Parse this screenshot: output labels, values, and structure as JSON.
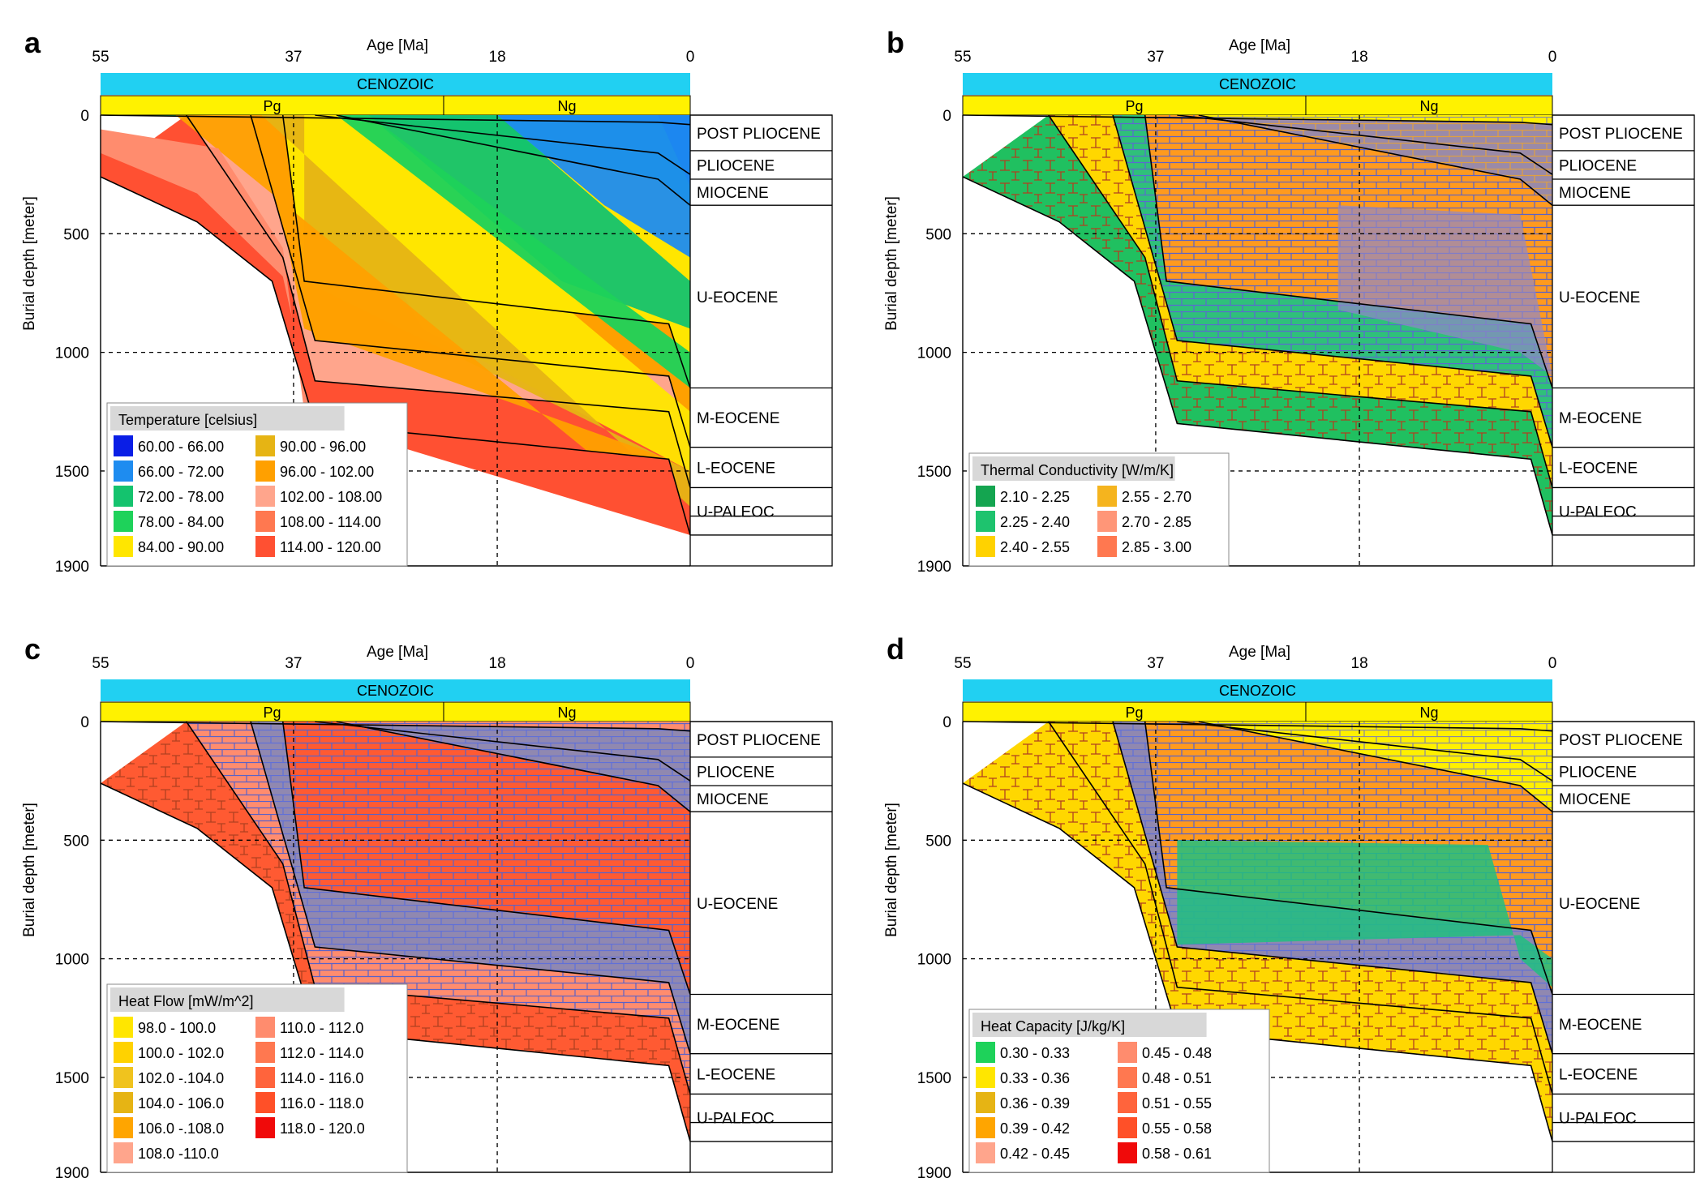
{
  "colors": {
    "cenozoic_bar": "#21d0f2",
    "period_bar": "#fff200",
    "black": "#000000"
  },
  "chart_data": [
    {
      "type": "area",
      "panel_letter": "a",
      "xlabel": "Age [Ma]",
      "ylabel": "Burial depth [meter]",
      "x_ticks": [
        "55",
        "37",
        "18",
        "0"
      ],
      "y_ticks": [
        "0",
        "500",
        "1000",
        "1500",
        "1900"
      ],
      "xlim": [
        55,
        0
      ],
      "ylim": [
        0,
        1900
      ],
      "era": "CENOZOIC",
      "periods": [
        {
          "label": "Pg",
          "from": 55,
          "to": 23
        },
        {
          "label": "Ng",
          "from": 23,
          "to": 0
        }
      ],
      "formations": [
        "POST PLIOCENE",
        "PLIOCENE",
        "MIOCENE",
        "U-EOCENE",
        "M-EOCENE",
        "L-EOCENE",
        "U-PALEOC"
      ],
      "formation_depths_present": [
        0,
        150,
        270,
        380,
        1150,
        1400,
        1570,
        1770
      ],
      "legend_title": "Temperature [celsius]",
      "legend": [
        {
          "label": "60.00 - 66.00",
          "color": "#0a1ee6"
        },
        {
          "label": "66.00 - 72.00",
          "color": "#1e8cf0"
        },
        {
          "label": "72.00 - 78.00",
          "color": "#14c36e"
        },
        {
          "label": "78.00 - 84.00",
          "color": "#1ed25a"
        },
        {
          "label": "84.00 - 90.00",
          "color": "#ffe600"
        },
        {
          "label": "90.00 - 96.00",
          "color": "#e6b414"
        },
        {
          "label": "96.00 - 102.00",
          "color": "#ffa000"
        },
        {
          "label": "102.00 - 108.00",
          "color": "#ffa58c"
        },
        {
          "label": "108.00 - 114.00",
          "color": "#ff7850"
        },
        {
          "label": "114.00 - 120.00",
          "color": "#ff5032"
        }
      ]
    },
    {
      "type": "area",
      "panel_letter": "b",
      "xlabel": "Age [Ma]",
      "ylabel": "Burial depth [meter]",
      "x_ticks": [
        "55",
        "37",
        "18",
        "0"
      ],
      "y_ticks": [
        "0",
        "500",
        "1000",
        "1500",
        "1900"
      ],
      "xlim": [
        55,
        0
      ],
      "ylim": [
        0,
        1900
      ],
      "era": "CENOZOIC",
      "periods": [
        {
          "label": "Pg",
          "from": 55,
          "to": 23
        },
        {
          "label": "Ng",
          "from": 23,
          "to": 0
        }
      ],
      "formations": [
        "POST PLIOCENE",
        "PLIOCENE",
        "MIOCENE",
        "U-EOCENE",
        "M-EOCENE",
        "L-EOCENE",
        "U-PALEOC"
      ],
      "formation_depths_present": [
        0,
        150,
        270,
        380,
        1150,
        1400,
        1570,
        1770
      ],
      "legend_title": "Thermal Conductivity [W/m/K]",
      "legend": [
        {
          "label": "2.10 - 2.25",
          "color": "#14a550"
        },
        {
          "label": "2.25 - 2.40",
          "color": "#1ec36e"
        },
        {
          "label": "2.40 - 2.55",
          "color": "#ffd200"
        },
        {
          "label": "2.55 - 2.70",
          "color": "#f5b41e"
        },
        {
          "label": "2.70 - 2.85",
          "color": "#ff9678"
        },
        {
          "label": "2.85 - 3.00",
          "color": "#ff7850"
        }
      ]
    },
    {
      "type": "area",
      "panel_letter": "c",
      "xlabel": "Age [Ma]",
      "ylabel": "Burial depth [meter]",
      "x_ticks": [
        "55",
        "37",
        "18",
        "0"
      ],
      "y_ticks": [
        "0",
        "500",
        "1000",
        "1500",
        "1900"
      ],
      "xlim": [
        55,
        0
      ],
      "ylim": [
        0,
        1900
      ],
      "era": "CENOZOIC",
      "periods": [
        {
          "label": "Pg",
          "from": 55,
          "to": 23
        },
        {
          "label": "Ng",
          "from": 23,
          "to": 0
        }
      ],
      "formations": [
        "POST PLIOCENE",
        "PLIOCENE",
        "MIOCENE",
        "U-EOCENE",
        "M-EOCENE",
        "L-EOCENE",
        "U-PALEOC"
      ],
      "formation_depths_present": [
        0,
        150,
        270,
        380,
        1150,
        1400,
        1570,
        1770
      ],
      "legend_title": "Heat Flow [mW/m^2]",
      "legend": [
        {
          "label": "98.0 - 100.0",
          "color": "#ffe600"
        },
        {
          "label": "100.0 - 102.0",
          "color": "#ffd200"
        },
        {
          "label": "102.0 -.104.0",
          "color": "#f0c31e"
        },
        {
          "label": "104.0 - 106.0",
          "color": "#e6b414"
        },
        {
          "label": "106.0 -.108.0",
          "color": "#ffa500"
        },
        {
          "label": "108.0 -110.0",
          "color": "#ffa58c"
        },
        {
          "label": "110.0 - 112.0",
          "color": "#ff8c6e"
        },
        {
          "label": "112.0 - 114.0",
          "color": "#ff7850"
        },
        {
          "label": "114.0 - 116.0",
          "color": "#ff643c"
        },
        {
          "label": "116.0 - 118.0",
          "color": "#ff5028"
        },
        {
          "label": "118.0 - 120.0",
          "color": "#f00a0a"
        }
      ]
    },
    {
      "type": "area",
      "panel_letter": "d",
      "xlabel": "Age [Ma]",
      "ylabel": "Burial depth [meter]",
      "x_ticks": [
        "55",
        "37",
        "18",
        "0"
      ],
      "y_ticks": [
        "0",
        "500",
        "1000",
        "1500",
        "1900"
      ],
      "xlim": [
        55,
        0
      ],
      "ylim": [
        0,
        1900
      ],
      "era": "CENOZOIC",
      "periods": [
        {
          "label": "Pg",
          "from": 55,
          "to": 23
        },
        {
          "label": "Ng",
          "from": 23,
          "to": 0
        }
      ],
      "formations": [
        "POST PLIOCENE",
        "PLIOCENE",
        "MIOCENE",
        "U-EOCENE",
        "M-EOCENE",
        "L-EOCENE",
        "U-PALEOC"
      ],
      "formation_depths_present": [
        0,
        150,
        270,
        380,
        1150,
        1400,
        1570,
        1770
      ],
      "legend_title": "Heat Capacity [J/kg/K]",
      "legend": [
        {
          "label": "0.30 - 0.33",
          "color": "#1ed25a"
        },
        {
          "label": "0.33 - 0.36",
          "color": "#ffe600"
        },
        {
          "label": "0.36 - 0.39",
          "color": "#e6b414"
        },
        {
          "label": "0.39 - 0.42",
          "color": "#ffa500"
        },
        {
          "label": "0.42 - 0.45",
          "color": "#ffa58c"
        },
        {
          "label": "0.45 - 0.48",
          "color": "#ff8c6e"
        },
        {
          "label": "0.48 - 0.51",
          "color": "#ff7850"
        },
        {
          "label": "0.51 - 0.55",
          "color": "#ff643c"
        },
        {
          "label": "0.55 - 0.58",
          "color": "#ff5028"
        },
        {
          "label": "0.58 - 0.61",
          "color": "#f00a0a"
        }
      ]
    }
  ]
}
